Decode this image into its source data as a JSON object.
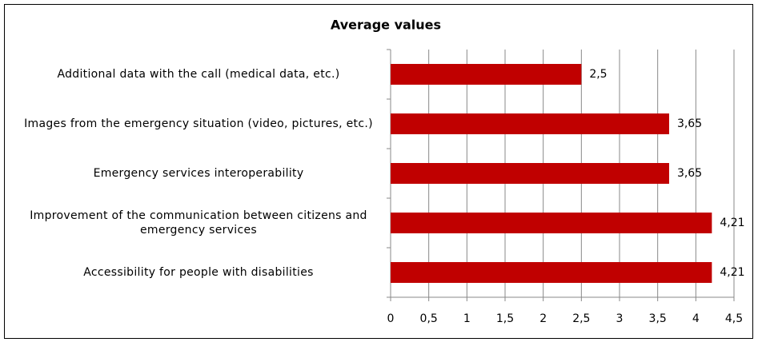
{
  "chart_data": {
    "type": "barh",
    "title": "Average values",
    "categories": [
      "Additional data with the call (medical data, etc.)",
      "Images from the emergency situation (video, pictures, etc.)",
      "Emergency services interoperability",
      "Improvement of the communication between citizens and emergency services",
      "Accessibility for people with disabilities"
    ],
    "values": [
      2.5,
      3.65,
      3.65,
      4.21,
      4.21
    ],
    "value_labels": [
      "2,5",
      "3,65",
      "3,65",
      "4,21",
      "4,21"
    ],
    "color": "#c00000",
    "xlim": [
      0,
      4.5
    ],
    "xticks": [
      0,
      {
        "value": 0.5,
        "label": "0,5"
      },
      1,
      {
        "value": 1.5,
        "label": "1,5"
      },
      2,
      {
        "value": 2.5,
        "label": "2,5"
      },
      3,
      {
        "value": 3.5,
        "label": "3,5"
      },
      4,
      {
        "value": 4.5,
        "label": "4,5"
      }
    ],
    "grid": true
  }
}
